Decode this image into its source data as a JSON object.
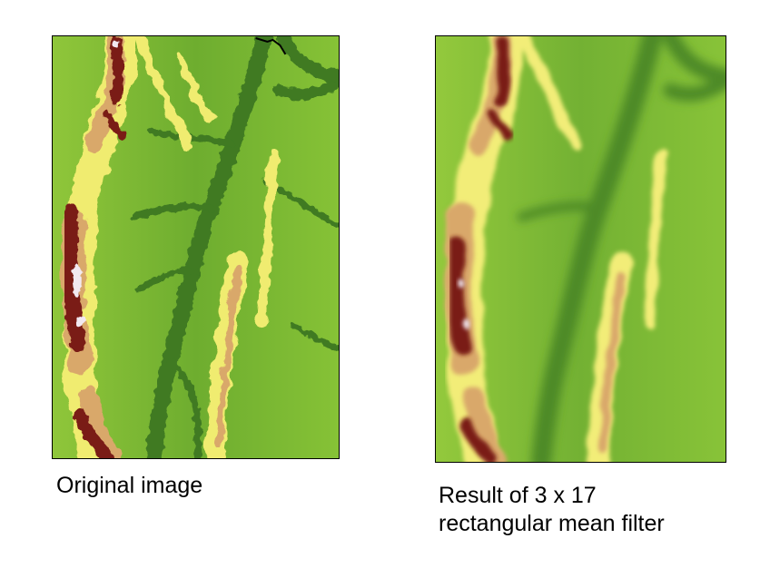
{
  "left": {
    "caption": "Original image"
  },
  "right": {
    "caption_line1": "Result of 3 x 17",
    "caption_line2": "rectangular mean filter"
  },
  "colors": {
    "low_dark_green": "#3f7a22",
    "mid_green": "#7fbe35",
    "light_green": "#b6dc4a",
    "yellow": "#f4f07a",
    "tan": "#d9a86a",
    "dark_red_brown": "#7a1c14",
    "peak_white": "#f2e9f0"
  }
}
